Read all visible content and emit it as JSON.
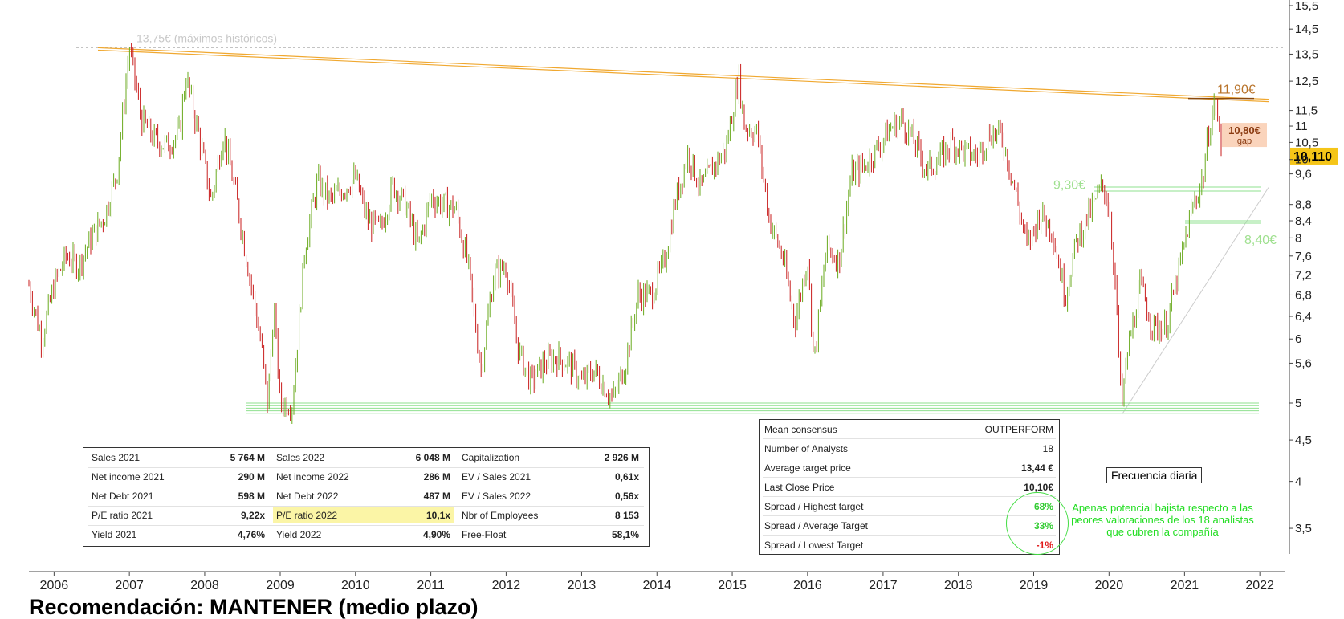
{
  "chart_data": {
    "type": "line",
    "subtype": "candlestick-price",
    "title": "",
    "xlabel": "",
    "ylabel": "",
    "scale": "log",
    "ylim": [
      3.1,
      15.5
    ],
    "yticks": [
      "15,5",
      "14,5",
      "13,5",
      "12,5",
      "11,5",
      "11",
      "10,5",
      "10",
      "9,6",
      "8,8",
      "8,4",
      "8",
      "7,6",
      "7,2",
      "6,8",
      "6,4",
      "6",
      "5,6",
      "5",
      "4,5",
      "4",
      "3,5"
    ],
    "xticks": [
      "2006",
      "2007",
      "2008",
      "2009",
      "2010",
      "2011",
      "2012",
      "2013",
      "2014",
      "2015",
      "2016",
      "2017",
      "2018",
      "2019",
      "2020",
      "2021",
      "2022"
    ],
    "xlim": [
      "2005-09-01",
      "2022-05-01"
    ],
    "series": [
      {
        "values_date": [
          "2005-09",
          "2005-11",
          "2006-01",
          "2006-03",
          "2006-05",
          "2006-07",
          "2006-09",
          "2006-11",
          "2007-01",
          "2007-03",
          "2007-05",
          "2007-07",
          "2007-09",
          "2007-10",
          "2007-12",
          "2008-02",
          "2008-04",
          "2008-06",
          "2008-08",
          "2008-10",
          "2008-11",
          "2008-12",
          "2009-01",
          "2009-03",
          "2009-05",
          "2009-07",
          "2009-09",
          "2009-11",
          "2010-01",
          "2010-03",
          "2010-05",
          "2010-07",
          "2010-09",
          "2010-11",
          "2011-01",
          "2011-03",
          "2011-05",
          "2011-07",
          "2011-09",
          "2011-11",
          "2012-01",
          "2012-03",
          "2012-05",
          "2012-07",
          "2012-09",
          "2012-11",
          "2013-01",
          "2013-03",
          "2013-05",
          "2013-06",
          "2013-08",
          "2013-10",
          "2013-12",
          "2014-02",
          "2014-04",
          "2014-06",
          "2014-08",
          "2014-10",
          "2014-12",
          "2015-02",
          "2015-03",
          "2015-05",
          "2015-07",
          "2015-09",
          "2015-11",
          "2016-01",
          "2016-02",
          "2016-04",
          "2016-06",
          "2016-08",
          "2016-10",
          "2016-12",
          "2017-02",
          "2017-04",
          "2017-06",
          "2017-08",
          "2017-10",
          "2017-12",
          "2018-02",
          "2018-04",
          "2018-06",
          "2018-08",
          "2018-10",
          "2018-12",
          "2019-02",
          "2019-04",
          "2019-06",
          "2019-08",
          "2019-10",
          "2019-12",
          "2020-01",
          "2020-02",
          "2020-03",
          "2020-04",
          "2020-06",
          "2020-08",
          "2020-10",
          "2020-12",
          "2021-02",
          "2021-04",
          "2021-05",
          "2021-06",
          "2021-07"
        ],
        "values": [
          7.0,
          6.0,
          7.0,
          7.6,
          7.4,
          8.0,
          8.5,
          9.6,
          13.75,
          11.2,
          10.6,
          10.4,
          10.8,
          12.7,
          10.8,
          8.9,
          10.8,
          9.0,
          7.3,
          5.9,
          4.95,
          6.6,
          5.0,
          5.0,
          7.8,
          9.4,
          8.9,
          9.2,
          9.5,
          8.4,
          8.2,
          9.3,
          8.8,
          7.8,
          9.0,
          8.8,
          8.7,
          7.4,
          5.5,
          7.2,
          7.4,
          5.8,
          5.3,
          5.6,
          5.7,
          5.6,
          5.3,
          5.5,
          5.2,
          5.05,
          5.6,
          6.8,
          6.8,
          7.4,
          8.9,
          10.2,
          9.2,
          9.8,
          10.3,
          12.7,
          11.0,
          10.8,
          8.4,
          7.6,
          6.3,
          7.6,
          5.6,
          7.8,
          7.5,
          9.6,
          9.8,
          10.3,
          10.9,
          11.2,
          10.5,
          9.7,
          10.0,
          10.5,
          10.2,
          10.1,
          10.8,
          10.7,
          9.2,
          7.8,
          8.6,
          8.2,
          6.8,
          8.0,
          8.6,
          9.3,
          8.8,
          7.0,
          4.9,
          5.8,
          7.0,
          6.2,
          6.2,
          7.2,
          8.6,
          9.5,
          11.0,
          11.8,
          10.1
        ]
      }
    ],
    "last_price": "10,110",
    "annotations": {
      "ath": "13,75€ (máximos históricos)",
      "resistance": "11,90€",
      "gap_value": "10,80€",
      "gap_label": "gap",
      "support1": "9,30€",
      "support2": "8,40€"
    }
  },
  "fundamentals": {
    "rows": [
      [
        [
          "Sales 2021",
          "5 764 M"
        ],
        [
          "Sales 2022",
          "6 048 M"
        ],
        [
          "Capitalization",
          "2 926 M"
        ]
      ],
      [
        [
          "Net income 2021",
          "290 M"
        ],
        [
          "Net income 2022",
          "286 M"
        ],
        [
          "EV / Sales 2021",
          "0,61x"
        ]
      ],
      [
        [
          "Net Debt 2021",
          "598 M"
        ],
        [
          "Net Debt 2022",
          "487 M"
        ],
        [
          "EV / Sales 2022",
          "0,56x"
        ]
      ],
      [
        [
          "P/E ratio 2021",
          "9,22x"
        ],
        [
          "P/E ratio 2022",
          "10,1x"
        ],
        [
          "Nbr of Employees",
          "8 153"
        ]
      ],
      [
        [
          "Yield 2021",
          "4,76%"
        ],
        [
          "Yield 2022",
          "4,90%"
        ],
        [
          "Free-Float",
          "58,1%"
        ]
      ]
    ]
  },
  "consensus": {
    "rows": [
      {
        "label": "Mean consensus",
        "value": "OUTPERFORM",
        "style": ""
      },
      {
        "label": "Number of Analysts",
        "value": "18",
        "style": ""
      },
      {
        "label": "Average target price",
        "value": "13,44 €",
        "style": "bold"
      },
      {
        "label": "Last Close Price",
        "value": "10,10€",
        "style": "bold"
      },
      {
        "label": "Spread / Highest target",
        "value": "68%",
        "style": "green"
      },
      {
        "label": "Spread / Average Target",
        "value": "33%",
        "style": "green"
      },
      {
        "label": "Spread / Lowest Target",
        "value": "-1%",
        "style": "red"
      }
    ]
  },
  "note": "Apenas potencial bajista respecto a las peores valoraciones de los 18 analistas que cubren la compañía",
  "frequency": "Frecuencia diaria",
  "bottom_title": "Recomendación: MANTENER (medio plazo)",
  "colors": {
    "up": "#6aaa1e",
    "down": "#c81e1e",
    "trend": "#f0a830",
    "support": "#8fe08f",
    "last_price_bg": "#f5c518"
  }
}
